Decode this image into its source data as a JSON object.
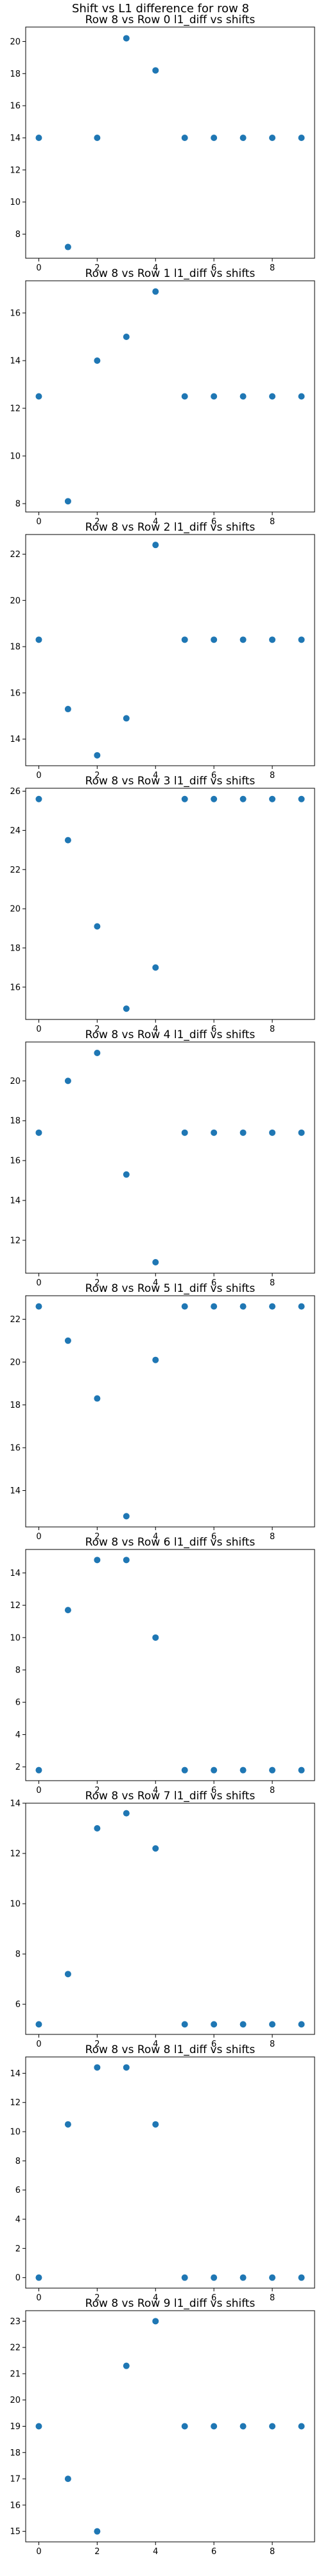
{
  "figure_title": "Shift vs L1 difference for row 8",
  "marker_color": "#1f77b4",
  "chart_data": [
    {
      "type": "scatter",
      "title": "Row 8 vs Row 0 l1_diff vs shifts",
      "x": [
        0,
        1,
        2,
        3,
        4,
        5,
        6,
        7,
        8,
        9
      ],
      "y": [
        14.0,
        7.2,
        14.0,
        20.2,
        18.2,
        14.0,
        14.0,
        14.0,
        14.0,
        14.0
      ],
      "xlim": [
        -0.45,
        9.45
      ],
      "ylim": [
        6.5,
        20.9
      ],
      "xticks": [
        0,
        2,
        4,
        6,
        8
      ],
      "yticks": [
        8,
        10,
        12,
        14,
        16,
        18,
        20
      ],
      "grid": false
    },
    {
      "type": "scatter",
      "title": "Row 8 vs Row 1 l1_diff vs shifts",
      "x": [
        0,
        1,
        2,
        3,
        4,
        5,
        6,
        7,
        8,
        9
      ],
      "y": [
        12.5,
        8.1,
        14.0,
        15.0,
        16.9,
        12.5,
        12.5,
        12.5,
        12.5,
        12.5
      ],
      "xlim": [
        -0.45,
        9.45
      ],
      "ylim": [
        7.65,
        17.35
      ],
      "xticks": [
        0,
        2,
        4,
        6,
        8
      ],
      "yticks": [
        8,
        10,
        12,
        14,
        16
      ],
      "grid": false
    },
    {
      "type": "scatter",
      "title": "Row 8 vs Row 2 l1_diff vs shifts",
      "x": [
        0,
        1,
        2,
        3,
        4,
        5,
        6,
        7,
        8,
        9
      ],
      "y": [
        18.3,
        15.3,
        13.3,
        14.9,
        22.4,
        18.3,
        18.3,
        18.3,
        18.3,
        18.3
      ],
      "xlim": [
        -0.45,
        9.45
      ],
      "ylim": [
        12.85,
        22.85
      ],
      "xticks": [
        0,
        2,
        4,
        6,
        8
      ],
      "yticks": [
        14,
        16,
        18,
        20,
        22
      ],
      "grid": false
    },
    {
      "type": "scatter",
      "title": "Row 8 vs Row 3 l1_diff vs shifts",
      "x": [
        0,
        1,
        2,
        3,
        4,
        5,
        6,
        7,
        8,
        9
      ],
      "y": [
        25.6,
        23.5,
        19.1,
        14.9,
        17.0,
        25.6,
        25.6,
        25.6,
        25.6,
        25.6
      ],
      "xlim": [
        -0.45,
        9.45
      ],
      "ylim": [
        14.35,
        26.15
      ],
      "xticks": [
        0,
        2,
        4,
        6,
        8
      ],
      "yticks": [
        16,
        18,
        20,
        22,
        24,
        26
      ],
      "grid": false
    },
    {
      "type": "scatter",
      "title": "Row 8 vs Row 4 l1_diff vs shifts",
      "x": [
        0,
        1,
        2,
        3,
        4,
        5,
        6,
        7,
        8,
        9
      ],
      "y": [
        17.4,
        20.0,
        21.4,
        15.3,
        10.9,
        17.4,
        17.4,
        17.4,
        17.4,
        17.4
      ],
      "xlim": [
        -0.45,
        9.45
      ],
      "ylim": [
        10.35,
        21.95
      ],
      "xticks": [
        0,
        2,
        4,
        6,
        8
      ],
      "yticks": [
        12,
        14,
        16,
        18,
        20
      ],
      "grid": false
    },
    {
      "type": "scatter",
      "title": "Row 8 vs Row 5 l1_diff vs shifts",
      "x": [
        0,
        1,
        2,
        3,
        4,
        5,
        6,
        7,
        8,
        9
      ],
      "y": [
        22.6,
        21.0,
        18.3,
        12.8,
        20.1,
        22.6,
        22.6,
        22.6,
        22.6,
        22.6
      ],
      "xlim": [
        -0.45,
        9.45
      ],
      "ylim": [
        12.3,
        23.1
      ],
      "xticks": [
        0,
        2,
        4,
        6,
        8
      ],
      "yticks": [
        14,
        16,
        18,
        20,
        22
      ],
      "grid": false
    },
    {
      "type": "scatter",
      "title": "Row 8 vs Row 6 l1_diff vs shifts",
      "x": [
        0,
        1,
        2,
        3,
        4,
        5,
        6,
        7,
        8,
        9
      ],
      "y": [
        1.8,
        11.7,
        14.8,
        14.8,
        10.0,
        1.8,
        1.8,
        1.8,
        1.8,
        1.8
      ],
      "xlim": [
        -0.45,
        9.45
      ],
      "ylim": [
        1.15,
        15.45
      ],
      "xticks": [
        0,
        2,
        4,
        6,
        8
      ],
      "yticks": [
        2,
        4,
        6,
        8,
        10,
        12,
        14
      ],
      "grid": false
    },
    {
      "type": "scatter",
      "title": "Row 8 vs Row 7 l1_diff vs shifts",
      "x": [
        0,
        1,
        2,
        3,
        4,
        5,
        6,
        7,
        8,
        9
      ],
      "y": [
        5.2,
        7.2,
        13.0,
        13.6,
        12.2,
        5.2,
        5.2,
        5.2,
        5.2,
        5.2
      ],
      "xlim": [
        -0.45,
        9.45
      ],
      "ylim": [
        4.8,
        14.0
      ],
      "xticks": [
        0,
        2,
        4,
        6,
        8
      ],
      "yticks": [
        6,
        8,
        10,
        12,
        14
      ],
      "grid": false
    },
    {
      "type": "scatter",
      "title": "Row 8 vs Row 8 l1_diff vs shifts",
      "x": [
        0,
        1,
        2,
        3,
        4,
        5,
        6,
        7,
        8,
        9
      ],
      "y": [
        0.0,
        10.5,
        14.4,
        14.4,
        10.5,
        0.0,
        0.0,
        0.0,
        0.0,
        0.0
      ],
      "xlim": [
        -0.45,
        9.45
      ],
      "ylim": [
        -0.72,
        15.12
      ],
      "xticks": [
        0,
        2,
        4,
        6,
        8
      ],
      "yticks": [
        0,
        2,
        4,
        6,
        8,
        10,
        12,
        14
      ],
      "grid": false
    },
    {
      "type": "scatter",
      "title": "Row 8 vs Row 9 l1_diff vs shifts",
      "x": [
        0,
        1,
        2,
        3,
        4,
        5,
        6,
        7,
        8,
        9
      ],
      "y": [
        19.0,
        17.0,
        15.0,
        21.3,
        23.0,
        19.0,
        19.0,
        19.0,
        19.0,
        19.0
      ],
      "xlim": [
        -0.45,
        9.45
      ],
      "ylim": [
        14.6,
        23.4
      ],
      "xticks": [
        0,
        2,
        4,
        6,
        8
      ],
      "yticks": [
        15,
        16,
        17,
        18,
        19,
        20,
        21,
        22,
        23
      ],
      "grid": false
    }
  ]
}
